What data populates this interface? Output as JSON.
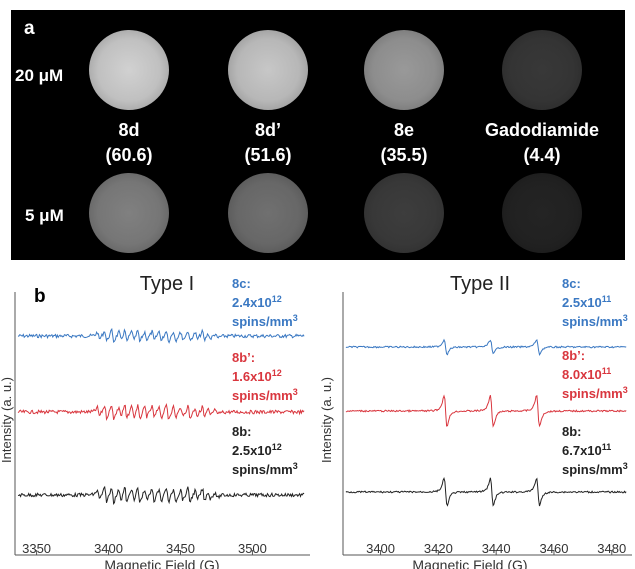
{
  "panel_a": {
    "letter": "a",
    "concentrations": [
      "20 μM",
      "5 μM"
    ],
    "samples": [
      {
        "name": "8d",
        "value": "(60.6)",
        "brightness_20": 0.82,
        "brightness_5": 0.5
      },
      {
        "name": "8d’",
        "value": "(51.6)",
        "brightness_20": 0.78,
        "brightness_5": 0.44
      },
      {
        "name": "8e",
        "value": "(35.5)",
        "brightness_20": 0.6,
        "brightness_5": 0.24
      },
      {
        "name": "Gadodiamide",
        "value": "(4.4)",
        "brightness_20": 0.22,
        "brightness_5": 0.14
      }
    ]
  },
  "panel_b": {
    "letter": "b",
    "colors": {
      "blue": "#3a78c2",
      "red": "#d9363e",
      "black": "#222222"
    },
    "chart_data": [
      {
        "type": "line",
        "title": "Type I",
        "xlabel": "Magnetic Field (G)",
        "ylabel": "Intensity (a. u.)",
        "xlim": [
          3335,
          3540
        ],
        "xticks": [
          "3350",
          "3400",
          "3450",
          "3500"
        ],
        "xtick_values": [
          3350,
          3400,
          3450,
          3500
        ],
        "series": [
          {
            "name": "8c:",
            "line2": "2.4x10",
            "exp": "12",
            "line3": "spins/mm",
            "unit_exp": "3",
            "color": "blue"
          },
          {
            "name": "8b’:",
            "line2": "1.6x10",
            "exp": "12",
            "line3": "spins/mm",
            "unit_exp": "3",
            "color": "red"
          },
          {
            "name": "8b:",
            "line2": "2.5x10",
            "exp": "12",
            "line3": "spins/mm",
            "unit_exp": "3",
            "color": "black"
          }
        ]
      },
      {
        "type": "line",
        "title": "Type II",
        "xlabel": "Magnetic Field (G)",
        "ylabel": "Intensity (a. u.)",
        "xlim": [
          3387,
          3487
        ],
        "xticks": [
          "3400",
          "3420",
          "3440",
          "3460",
          "3480"
        ],
        "xtick_values": [
          3400,
          3420,
          3440,
          3460,
          3480
        ],
        "series": [
          {
            "name": "8c:",
            "line2": "2.5x10",
            "exp": "11",
            "line3": "spins/mm",
            "unit_exp": "3",
            "color": "blue"
          },
          {
            "name": "8b’:",
            "line2": "8.0x10",
            "exp": "11",
            "line3": "spins/mm",
            "unit_exp": "3",
            "color": "red"
          },
          {
            "name": "8b:",
            "line2": "6.7x10",
            "exp": "11",
            "line3": "spins/mm",
            "unit_exp": "3",
            "color": "black"
          }
        ]
      }
    ]
  }
}
